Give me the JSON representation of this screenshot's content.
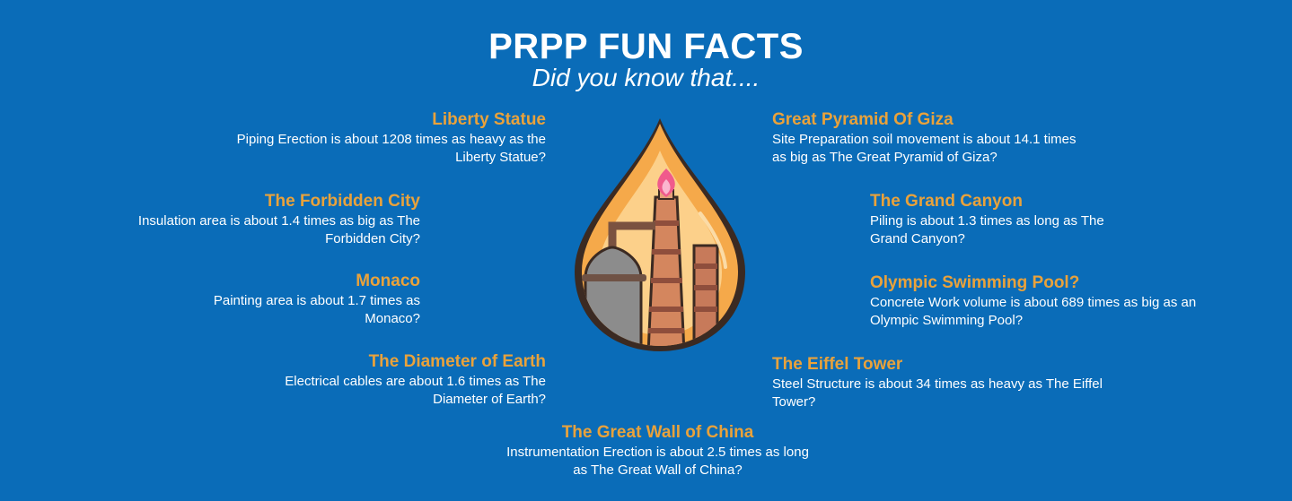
{
  "header": {
    "title": "PRPP FUN FACTS",
    "subtitle": "Did you know that...."
  },
  "facts": [
    {
      "heading": "Liberty Statue",
      "text": "Piping Erection is about 1208 times as heavy as the Liberty Statue?"
    },
    {
      "heading": "The Forbidden City",
      "text": "Insulation area is about 1.4 times as big as The Forbidden City?"
    },
    {
      "heading": "Monaco",
      "text": "Painting area is about 1.7 times as Monaco?"
    },
    {
      "heading": "The Diameter of Earth",
      "text": "Electrical cables are about 1.6 times as The Diameter of Earth?"
    },
    {
      "heading": "Great Pyramid Of Giza",
      "text": "Site Preparation soil movement is about 14.1 times as big as The Great Pyramid of Giza?"
    },
    {
      "heading": "The Grand Canyon",
      "text": "Piling is about 1.3 times as long as The Grand Canyon?"
    },
    {
      "heading": "Olympic Swimming Pool?",
      "text": "Concrete Work volume is about 689 times as big as an Olympic Swimming Pool?"
    },
    {
      "heading": "The Eiffel Tower",
      "text": "Steel Structure is about 34 times as heavy as The Eiffel Tower?"
    },
    {
      "heading": "The Great Wall of China",
      "text": "Instrumentation Erection is about 2.5 times as long as The Great Wall of China?"
    }
  ],
  "colors": {
    "background": "#0a6cb8",
    "heading": "#e9a23b",
    "text": "#ffffff"
  },
  "illustration": {
    "icon": "oil-drop-refinery-icon"
  }
}
